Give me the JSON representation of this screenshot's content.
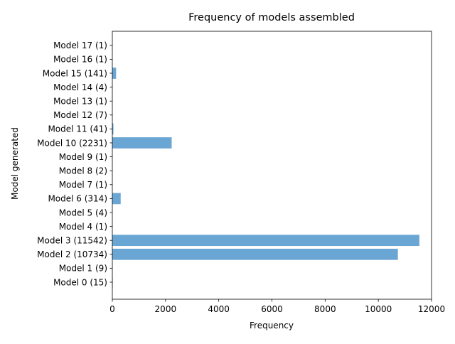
{
  "chart_data": {
    "type": "bar",
    "orientation": "horizontal",
    "title": "Frequency of models assembled",
    "xlabel": "Frequency",
    "ylabel": "Model generated",
    "categories": [
      "Model 0 (15)",
      "Model 1 (9)",
      "Model 2 (10734)",
      "Model 3 (11542)",
      "Model 4 (1)",
      "Model 5 (4)",
      "Model 6 (314)",
      "Model 7 (1)",
      "Model 8 (2)",
      "Model 9 (1)",
      "Model 10 (2231)",
      "Model 11 (41)",
      "Model 12 (7)",
      "Model 13 (1)",
      "Model 14 (4)",
      "Model 15 (141)",
      "Model 16 (1)",
      "Model 17 (1)"
    ],
    "values": [
      15,
      9,
      10734,
      11542,
      1,
      4,
      314,
      1,
      2,
      1,
      2231,
      41,
      7,
      1,
      4,
      141,
      1,
      1
    ],
    "xlim": [
      0,
      12000
    ],
    "xticks": [
      "0",
      "2000",
      "4000",
      "6000",
      "8000",
      "10000",
      "12000"
    ],
    "grid": false,
    "bar_color": "#6aa6d4"
  }
}
